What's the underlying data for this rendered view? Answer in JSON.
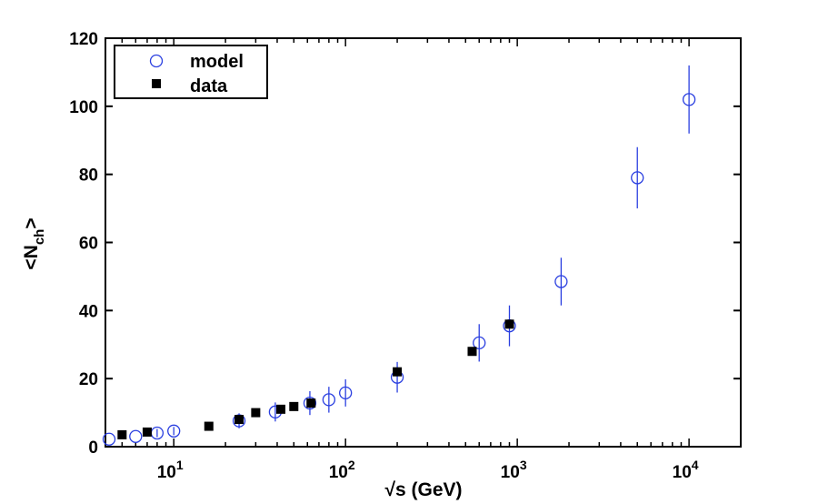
{
  "chart_data": {
    "type": "scatter",
    "xscale": "log",
    "xlim": [
      4,
      20000
    ],
    "ylim": [
      0,
      120
    ],
    "xlabel": "√s (GeV)",
    "ylabel": {
      "base": "<N",
      "sub": "ch",
      "close": ">"
    },
    "yticks": [
      0,
      20,
      40,
      60,
      80,
      100,
      120
    ],
    "xticks": [
      {
        "value": 10,
        "base": "10",
        "exp": "1"
      },
      {
        "value": 100,
        "base": "10",
        "exp": "2"
      },
      {
        "value": 1000,
        "base": "10",
        "exp": "3"
      },
      {
        "value": 10000,
        "base": "10",
        "exp": "4"
      }
    ],
    "legend": {
      "position": "top-left",
      "entries": [
        "model",
        "data"
      ]
    },
    "colors": {
      "model": "#2a3fe0",
      "data": "#000000"
    },
    "series": [
      {
        "name": "model",
        "marker": "open-circle",
        "points": [
          {
            "x": 4.2,
            "y": 2.2,
            "err": 0
          },
          {
            "x": 6,
            "y": 3.0,
            "err": 0
          },
          {
            "x": 8,
            "y": 4.0,
            "err": 1.2
          },
          {
            "x": 10,
            "y": 4.6,
            "err": 1.2
          },
          {
            "x": 24,
            "y": 7.6,
            "err": 2.2
          },
          {
            "x": 39,
            "y": 10.2,
            "err": 2.8
          },
          {
            "x": 62,
            "y": 12.8,
            "err": 3.5
          },
          {
            "x": 80,
            "y": 13.8,
            "err": 3.8
          },
          {
            "x": 100,
            "y": 15.8,
            "err": 4.0
          },
          {
            "x": 200,
            "y": 20.4,
            "err": 4.5
          },
          {
            "x": 600,
            "y": 30.5,
            "err": 5.5
          },
          {
            "x": 900,
            "y": 35.5,
            "err": 6.0
          },
          {
            "x": 1800,
            "y": 48.5,
            "err": 7.0
          },
          {
            "x": 5000,
            "y": 79,
            "err": 9.0
          },
          {
            "x": 10000,
            "y": 102,
            "err": 10.0
          }
        ]
      },
      {
        "name": "data",
        "marker": "filled-square",
        "points": [
          {
            "x": 5,
            "y": 3.5
          },
          {
            "x": 7,
            "y": 4.3
          },
          {
            "x": 16,
            "y": 6.0
          },
          {
            "x": 24,
            "y": 8.0
          },
          {
            "x": 30,
            "y": 10.0
          },
          {
            "x": 42,
            "y": 11.0
          },
          {
            "x": 50,
            "y": 11.8
          },
          {
            "x": 63,
            "y": 12.8
          },
          {
            "x": 200,
            "y": 22.0
          },
          {
            "x": 546,
            "y": 28.0
          },
          {
            "x": 900,
            "y": 36.0
          }
        ]
      }
    ]
  }
}
